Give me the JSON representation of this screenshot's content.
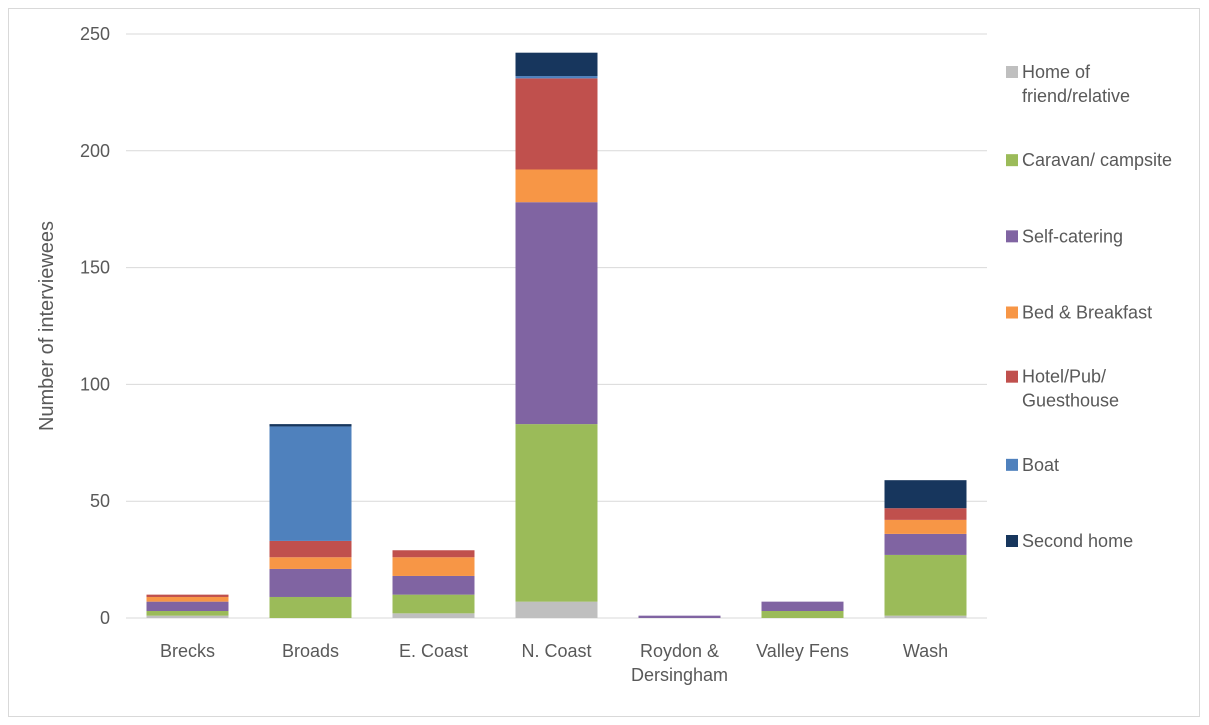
{
  "chart_data": {
    "type": "bar",
    "stacked": true,
    "title": "",
    "xlabel": "",
    "ylabel": "Number of interviewees",
    "ylim": [
      0,
      250
    ],
    "yticks": [
      0,
      50,
      100,
      150,
      200,
      250
    ],
    "grid": true,
    "legend_position": "right",
    "categories": [
      [
        "Brecks"
      ],
      [
        "Broads"
      ],
      [
        "E. Coast"
      ],
      [
        "N. Coast"
      ],
      [
        "Roydon &",
        "Dersingham"
      ],
      [
        "Valley Fens"
      ],
      [
        "Wash"
      ]
    ],
    "series": [
      {
        "name": [
          "Home of",
          "friend/relative"
        ],
        "color": "#bfbfbf",
        "values": [
          1,
          0,
          2,
          7,
          0,
          0,
          1
        ]
      },
      {
        "name": [
          "Caravan/ campsite"
        ],
        "color": "#9bbb59",
        "values": [
          2,
          9,
          8,
          76,
          0,
          3,
          26
        ]
      },
      {
        "name": [
          "Self-catering"
        ],
        "color": "#8064a2",
        "values": [
          4,
          12,
          8,
          95,
          1,
          4,
          9
        ]
      },
      {
        "name": [
          "Bed & Breakfast"
        ],
        "color": "#f79646",
        "values": [
          2,
          5,
          8,
          14,
          0,
          0,
          6
        ]
      },
      {
        "name": [
          "Hotel/Pub/",
          "Guesthouse"
        ],
        "color": "#c0504d",
        "values": [
          1,
          7,
          3,
          39,
          0,
          0,
          5
        ]
      },
      {
        "name": [
          "Boat"
        ],
        "color": "#4f81bd",
        "values": [
          0,
          49,
          0,
          1,
          0,
          0,
          0
        ]
      },
      {
        "name": [
          "Second home"
        ],
        "color": "#17365d",
        "values": [
          0,
          1,
          0,
          10,
          0,
          0,
          12
        ]
      }
    ]
  }
}
